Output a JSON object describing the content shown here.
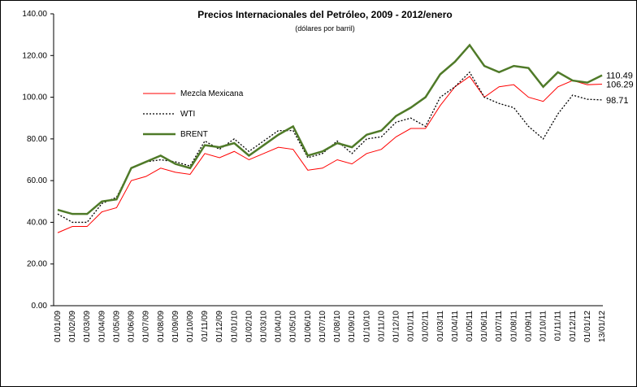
{
  "chart_data": {
    "type": "line",
    "title": "Precios Internacionales del Petróleo, 2009 - 2012/enero",
    "subtitle": "(dólares por barril)",
    "categories": [
      "01/01/09",
      "01/02/09",
      "01/03/09",
      "01/04/09",
      "01/05/09",
      "01/06/09",
      "01/07/09",
      "01/08/09",
      "01/09/09",
      "01/10/09",
      "01/11/09",
      "01/12/09",
      "01/01/10",
      "01/02/10",
      "01/03/10",
      "01/04/10",
      "01/05/10",
      "01/06/10",
      "01/07/10",
      "01/08/10",
      "01/09/10",
      "01/10/10",
      "01/11/10",
      "01/12/10",
      "01/01/11",
      "01/02/11",
      "01/03/11",
      "01/04/11",
      "01/05/11",
      "01/06/11",
      "01/07/11",
      "01/08/11",
      "01/09/11",
      "01/10/11",
      "01/11/11",
      "01/12/11",
      "01/01/12",
      "13/01/12"
    ],
    "series": [
      {
        "name": "Mezcla Mexicana",
        "color": "#ff0000",
        "values": [
          35,
          38,
          38,
          45,
          47,
          60,
          62,
          66,
          64,
          63,
          73,
          71,
          74,
          70,
          73,
          76,
          75,
          65,
          66,
          70,
          68,
          73,
          75,
          81,
          85,
          85,
          96,
          105,
          110,
          100,
          105,
          106,
          100,
          98,
          105,
          108,
          106,
          106.29
        ]
      },
      {
        "name": "WTI",
        "color": "#000000",
        "values": [
          44,
          40,
          40,
          49,
          52,
          66,
          69,
          70,
          69,
          67,
          79,
          75,
          80,
          74,
          79,
          84,
          84,
          71,
          73,
          79,
          73,
          80,
          81,
          88,
          90,
          86,
          100,
          105,
          112,
          100,
          97,
          95,
          86,
          80,
          92,
          101,
          99,
          98.71
        ]
      },
      {
        "name": "BRENT",
        "color": "#4f7a28",
        "values": [
          46,
          44,
          44,
          50,
          51,
          66,
          69,
          72,
          68,
          66,
          77,
          76,
          78,
          72,
          77,
          82,
          86,
          72,
          74,
          78,
          76,
          82,
          84,
          91,
          95,
          100,
          111,
          117,
          125,
          115,
          112,
          115,
          114,
          105,
          112,
          108,
          107,
          110.49
        ]
      }
    ],
    "ylim": [
      0,
      140
    ],
    "yticks": [
      {
        "value": 0,
        "label": "0.00"
      },
      {
        "value": 20,
        "label": "20.00"
      },
      {
        "value": 40,
        "label": "40.00"
      },
      {
        "value": 60,
        "label": "60.00"
      },
      {
        "value": 80,
        "label": "80.00"
      },
      {
        "value": 100,
        "label": "100.00"
      },
      {
        "value": 120,
        "label": "120.00"
      },
      {
        "value": 140,
        "label": "140.00"
      }
    ],
    "grid": false
  }
}
